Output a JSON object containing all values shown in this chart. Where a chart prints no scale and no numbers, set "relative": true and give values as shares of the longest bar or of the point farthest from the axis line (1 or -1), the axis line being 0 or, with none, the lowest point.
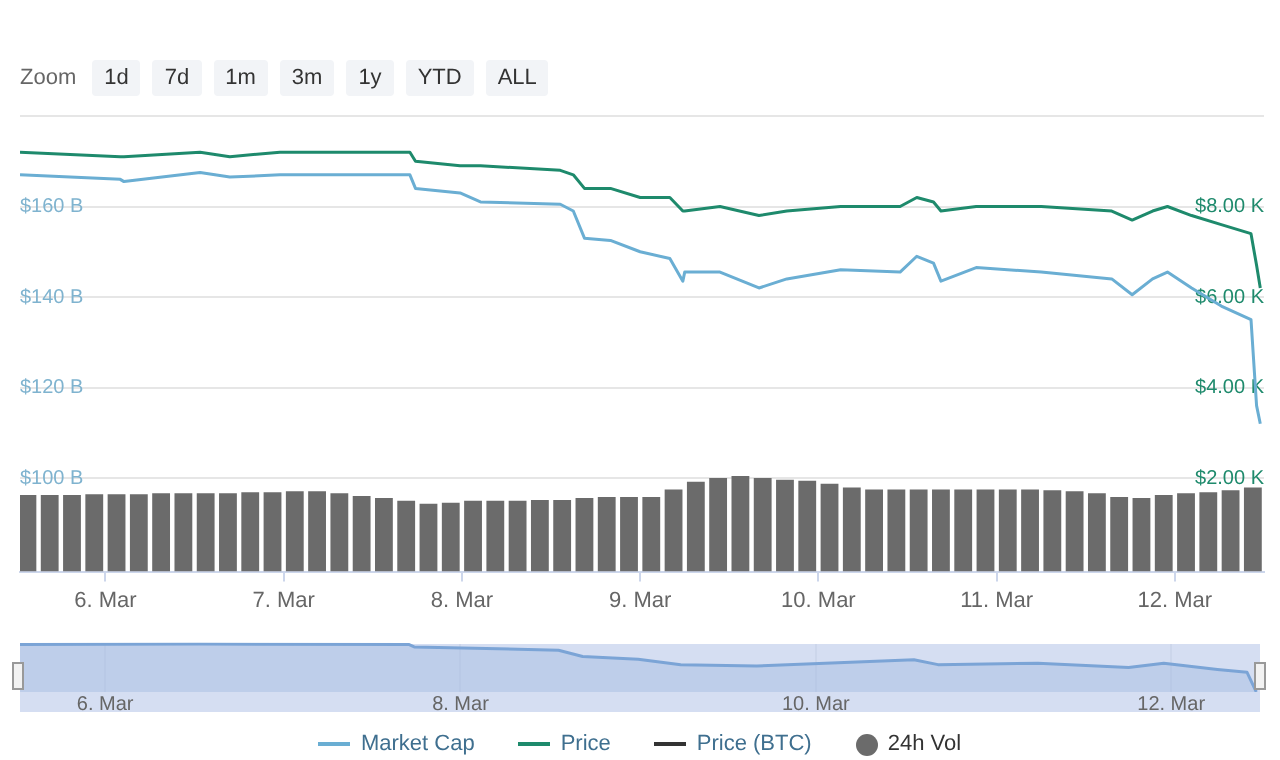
{
  "chart_data": [
    {
      "type": "line",
      "annotations": [
        "Zoom",
        "1d",
        "7d",
        "1m",
        "3m",
        "1y",
        "YTD",
        "ALL"
      ],
      "x": [
        "--03-05T12:30",
        "--03-06T02:00",
        "--03-06T02:30",
        "--03-06T12:45",
        "--03-06T16:45",
        "--03-06T23:30",
        "--03-07T17:00",
        "--03-07T17:45",
        "--03-07T23:45",
        "--03-08T02:30",
        "--03-08T13:15",
        "--03-08T15:00",
        "--03-08T16:30",
        "--03-08T20:00",
        "--03-09T00:00",
        "--03-09T04:00",
        "--03-09T05:45",
        "--03-09T06:00",
        "--03-09T10:45",
        "--03-09T16:00",
        "--03-09T19:45",
        "--03-10T03:00",
        "--03-10T11:00",
        "--03-10T13:15",
        "--03-10T15:30",
        "--03-10T16:30",
        "--03-10T21:15",
        "--03-11T06:00",
        "--03-11T15:30",
        "--03-11T18:15",
        "--03-11T21:00",
        "--03-11T23:00",
        "--03-12T02:15",
        "--03-12T06:15",
        "--03-12T10:15",
        "--03-12T11:00",
        "--03-12T11:30"
      ],
      "series": [
        {
          "name": "Market Cap",
          "color": "#6aaed3",
          "values": [
            167,
            166,
            165.5,
            167.5,
            166.5,
            167,
            167,
            164,
            163,
            161,
            160.5,
            159,
            153,
            152.5,
            150,
            148.5,
            143.5,
            145.5,
            145.5,
            142,
            144,
            146,
            145.5,
            149,
            147.5,
            143.5,
            146.5,
            145.5,
            144,
            140.5,
            144,
            145.5,
            142,
            138,
            135,
            116,
            112
          ]
        },
        {
          "name": "Price",
          "color": "#1e8a6c",
          "axis": "y2",
          "values": [
            9200,
            9100,
            9100,
            9200,
            9100,
            9200,
            9200,
            9000,
            8900,
            8900,
            8800,
            8700,
            8400,
            8400,
            8200,
            8200,
            7900,
            7900,
            8000,
            7800,
            7900,
            8000,
            8000,
            8200,
            8100,
            7900,
            8000,
            8000,
            7900,
            7700,
            7900,
            8000,
            7800,
            7600,
            7400,
            6700,
            6200
          ]
        },
        {
          "name": "Price (BTC)",
          "color": "#333333",
          "values": [
            null,
            null,
            null,
            null,
            null,
            null,
            null,
            null,
            null,
            null,
            null,
            null,
            null,
            null,
            null,
            null,
            null,
            null,
            null,
            null,
            null,
            null,
            null,
            null,
            null,
            null,
            null,
            null,
            null,
            null,
            null,
            null,
            null,
            null,
            null,
            null,
            null
          ]
        }
      ],
      "xlim": [
        "--03-05T12:30",
        "--03-12T12:00"
      ],
      "ylim": [
        100,
        180
      ],
      "yticks": [
        {
          "value": 100,
          "label": "$100 B"
        },
        {
          "value": 120,
          "label": "$120 B"
        },
        {
          "value": 140,
          "label": "$140 B"
        },
        {
          "value": 160,
          "label": "$160 B"
        },
        {
          "value": 180,
          "label": null
        }
      ],
      "y2lim": [
        2000,
        10000
      ],
      "y2ticks": [
        {
          "value": 2000,
          "label": "$2.00 K"
        },
        {
          "value": 4000,
          "label": "$4.00 K"
        },
        {
          "value": 6000,
          "label": "$6.00 K"
        },
        {
          "value": 8000,
          "label": "$8.00 K"
        },
        {
          "value": 10000,
          "label": null
        }
      ],
      "grid": "y",
      "tick_labels": "y",
      "legend": "bottom",
      "marker": "none",
      "line_style": "solid"
    },
    {
      "type": "bar",
      "relative": true,
      "x": [
        "--03-05T13:30",
        "--03-05T16:30",
        "--03-05T19:30",
        "--03-05T22:30",
        "--03-06T01:30",
        "--03-06T04:30",
        "--03-06T07:30",
        "--03-06T10:30",
        "--03-06T13:30",
        "--03-06T16:30",
        "--03-06T19:30",
        "--03-06T22:30",
        "--03-07T01:30",
        "--03-07T04:30",
        "--03-07T07:30",
        "--03-07T10:30",
        "--03-07T13:30",
        "--03-07T16:30",
        "--03-07T19:30",
        "--03-07T22:30",
        "--03-08T01:30",
        "--03-08T04:30",
        "--03-08T07:30",
        "--03-08T10:30",
        "--03-08T13:30",
        "--03-08T16:30",
        "--03-08T19:30",
        "--03-08T22:30",
        "--03-09T01:30",
        "--03-09T04:30",
        "--03-09T07:30",
        "--03-09T10:30",
        "--03-09T13:30",
        "--03-09T16:30",
        "--03-09T19:30",
        "--03-09T22:30",
        "--03-10T01:30",
        "--03-10T04:30",
        "--03-10T07:30",
        "--03-10T10:30",
        "--03-10T13:30",
        "--03-10T16:30",
        "--03-10T19:30",
        "--03-10T22:30",
        "--03-11T01:30",
        "--03-11T04:30",
        "--03-11T07:30",
        "--03-11T10:30",
        "--03-11T13:30",
        "--03-11T16:30",
        "--03-11T19:30",
        "--03-11T22:30",
        "--03-12T01:30",
        "--03-12T04:30",
        "--03-12T07:30",
        "--03-12T10:30"
      ],
      "series": [
        {
          "name": "24h Vol",
          "color": "#6b6b6b",
          "values": [
            0.8,
            0.8,
            0.8,
            0.81,
            0.81,
            0.81,
            0.82,
            0.82,
            0.82,
            0.82,
            0.83,
            0.83,
            0.84,
            0.84,
            0.82,
            0.79,
            0.77,
            0.74,
            0.71,
            0.72,
            0.74,
            0.74,
            0.74,
            0.75,
            0.75,
            0.77,
            0.78,
            0.78,
            0.78,
            0.86,
            0.94,
            0.98,
            1,
            0.98,
            0.96,
            0.95,
            0.92,
            0.88,
            0.86,
            0.86,
            0.86,
            0.86,
            0.86,
            0.86,
            0.86,
            0.86,
            0.85,
            0.84,
            0.82,
            0.78,
            0.77,
            0.8,
            0.82,
            0.83,
            0.85,
            0.88
          ]
        }
      ],
      "xlim": [
        "--03-05T12:30",
        "--03-12T12:00"
      ],
      "xticks": [
        {
          "value": "--03-06",
          "label": "6. Mar"
        },
        {
          "value": "--03-07",
          "label": "7. Mar"
        },
        {
          "value": "--03-08",
          "label": "8. Mar"
        },
        {
          "value": "--03-09",
          "label": "9. Mar"
        },
        {
          "value": "--03-10",
          "label": "10. Mar"
        },
        {
          "value": "--03-11",
          "label": "11. Mar"
        },
        {
          "value": "--03-12",
          "label": "12. Mar"
        }
      ],
      "tick_labels": "x",
      "legend": "bottom"
    },
    {
      "type": "area",
      "relative": true,
      "x": [
        "--03-05T12:30",
        "--03-06T12:45",
        "--03-07T17:00",
        "--03-07T17:45",
        "--03-08T13:15",
        "--03-08T16:30",
        "--03-09T00:00",
        "--03-09T05:45",
        "--03-09T16:00",
        "--03-10T03:00",
        "--03-10T13:15",
        "--03-10T16:30",
        "--03-11T06:00",
        "--03-11T18:15",
        "--03-11T23:00",
        "--03-12T06:15",
        "--03-12T10:15",
        "--03-12T11:30"
      ],
      "series": [
        {
          "color": "#7ba4d6",
          "values": [
            0.99,
            1,
            0.99,
            0.94,
            0.87,
            0.74,
            0.68,
            0.57,
            0.54,
            0.61,
            0.67,
            0.57,
            0.6,
            0.51,
            0.6,
            0.47,
            0.41,
            0
          ]
        }
      ],
      "xlim": [
        "--03-05T12:30",
        "--03-12T12:00"
      ],
      "xticks": [
        {
          "value": "--03-06",
          "label": "6. Mar"
        },
        {
          "value": "--03-08",
          "label": "8. Mar"
        },
        {
          "value": "--03-10",
          "label": "10. Mar"
        },
        {
          "value": "--03-12",
          "label": "12. Mar"
        }
      ],
      "grid": "x",
      "tick_labels": "x"
    }
  ]
}
